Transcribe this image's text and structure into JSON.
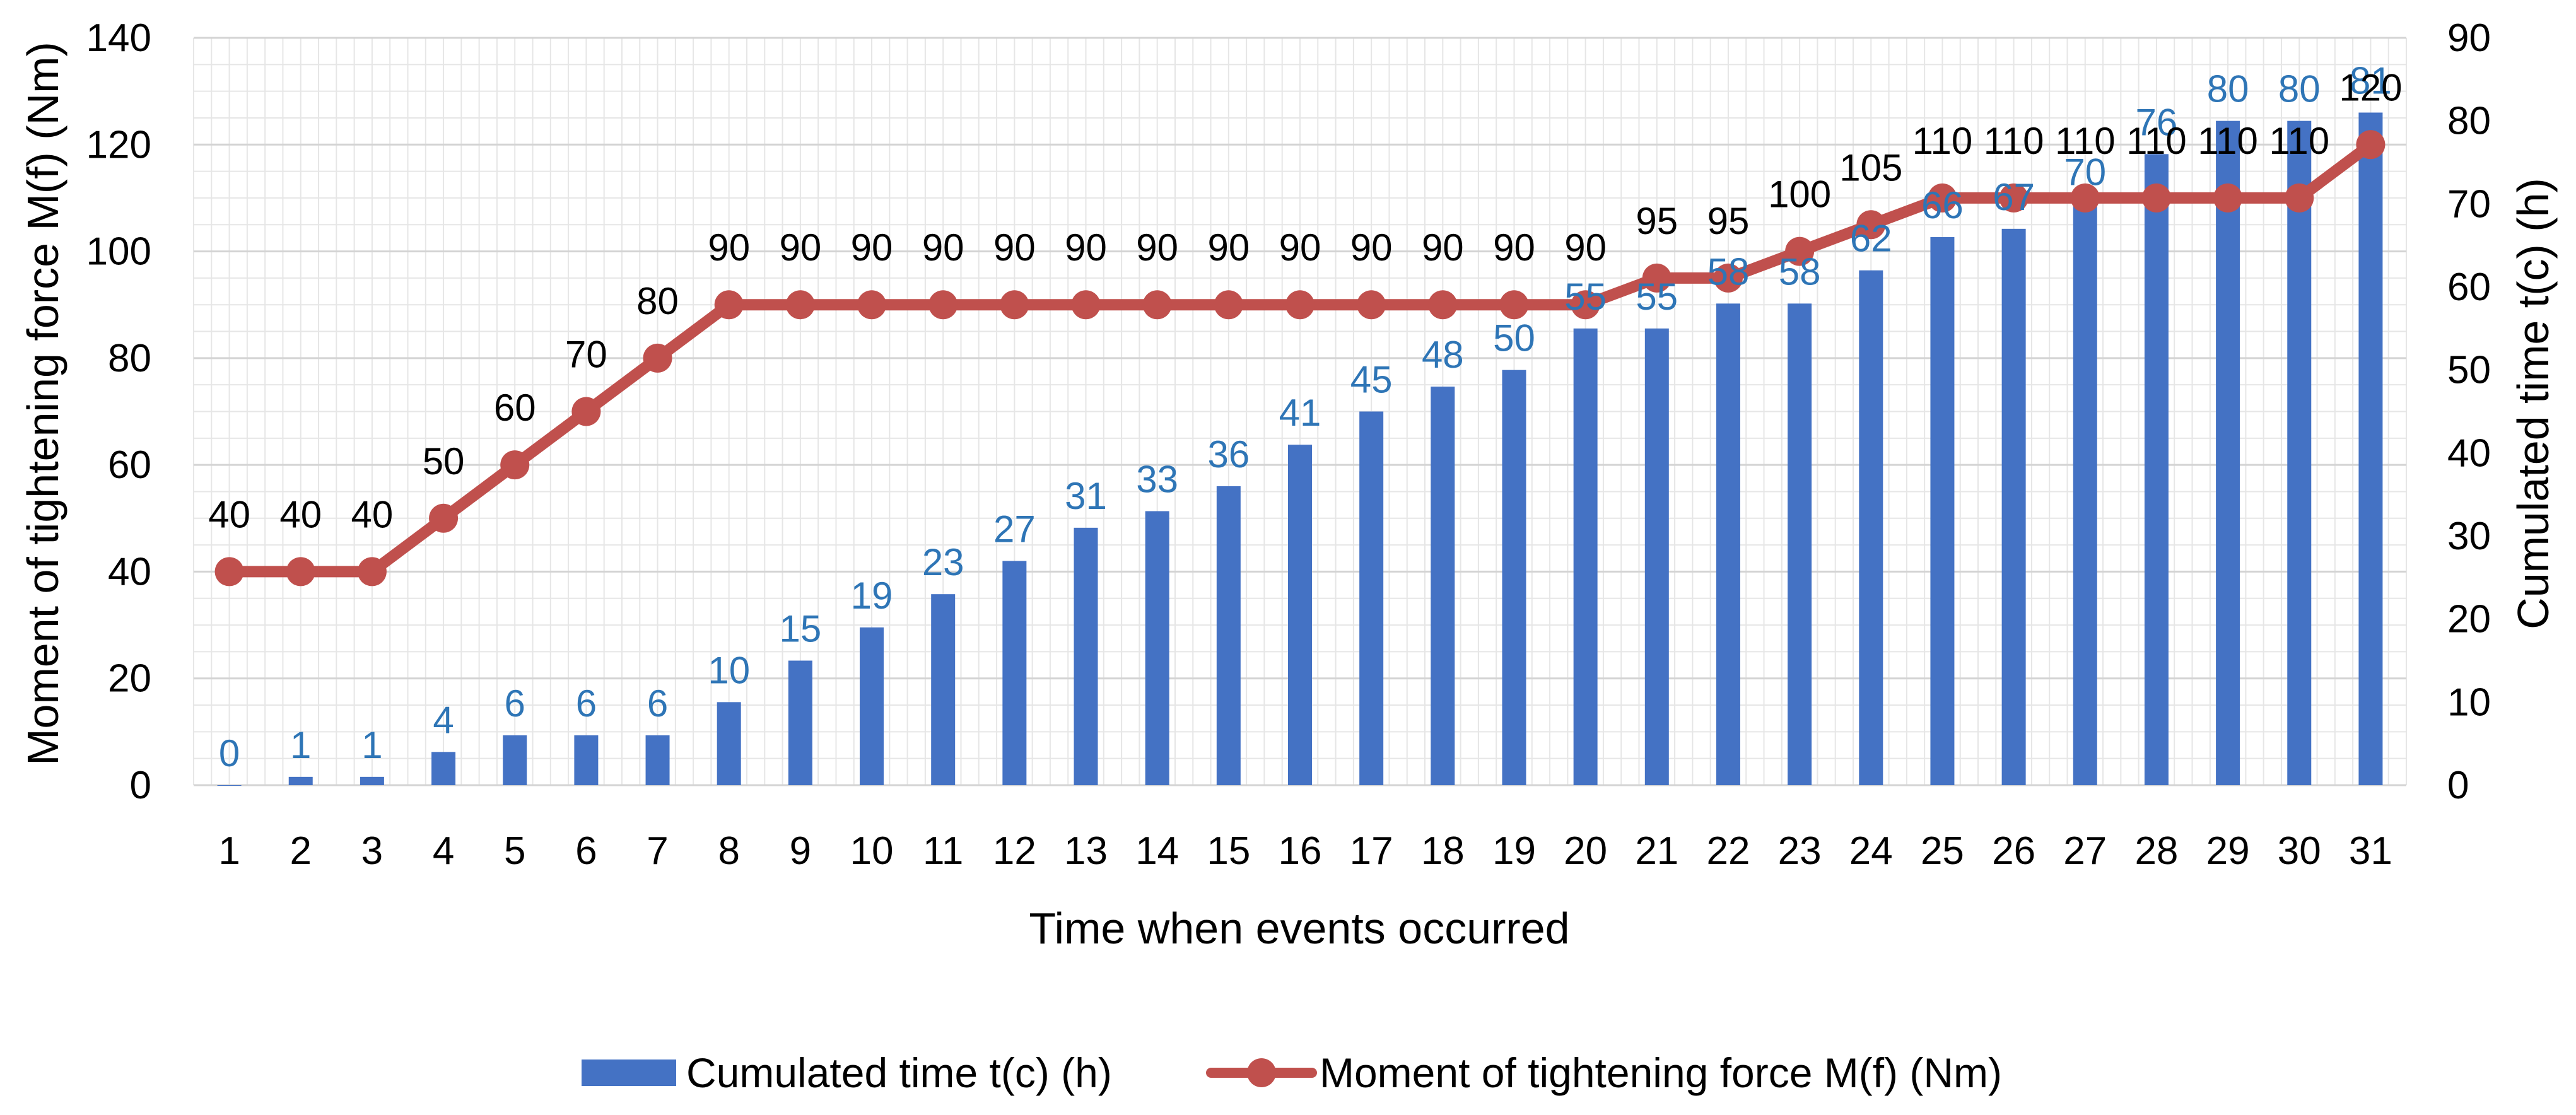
{
  "chart_data": {
    "type": "bar+line",
    "title": "",
    "categories": [
      "1",
      "2",
      "3",
      "4",
      "5",
      "6",
      "7",
      "8",
      "9",
      "10",
      "11",
      "12",
      "13",
      "14",
      "15",
      "16",
      "17",
      "18",
      "19",
      "20",
      "21",
      "22",
      "23",
      "24",
      "25",
      "26",
      "27",
      "28",
      "29",
      "30",
      "31"
    ],
    "series": [
      {
        "name": "Cumulated time t(c) (h)",
        "type": "bar",
        "axis": "right",
        "color": "#4472C4",
        "label_color": "#2E75B6",
        "values": [
          0,
          1,
          1,
          4,
          6,
          6,
          6,
          10,
          15,
          19,
          23,
          27,
          31,
          33,
          36,
          41,
          45,
          48,
          50,
          55,
          55,
          58,
          58,
          62,
          66,
          67,
          70,
          76,
          80,
          80,
          81
        ]
      },
      {
        "name": "Moment of tightening force M(f) (Nm)",
        "type": "line",
        "axis": "left",
        "color": "#C0504D",
        "values": [
          40,
          40,
          40,
          50,
          60,
          70,
          80,
          90,
          90,
          90,
          90,
          90,
          90,
          90,
          90,
          90,
          90,
          90,
          90,
          90,
          95,
          95,
          100,
          105,
          110,
          110,
          110,
          110,
          110,
          110,
          120
        ]
      }
    ],
    "xlabel": "Time when events occurred",
    "ylabel": "Moment of tightening force M(f) (Nm)",
    "y2label": "Cumulated time t(c) (h)",
    "ylim": [
      0,
      140
    ],
    "y2lim": [
      0,
      90
    ],
    "yticks": [
      "0",
      "20",
      "40",
      "60",
      "80",
      "100",
      "120",
      "140"
    ],
    "y2ticks": [
      "0",
      "10",
      "20",
      "30",
      "40",
      "50",
      "60",
      "70",
      "80",
      "90"
    ],
    "grid": true,
    "legend": "bottom"
  }
}
